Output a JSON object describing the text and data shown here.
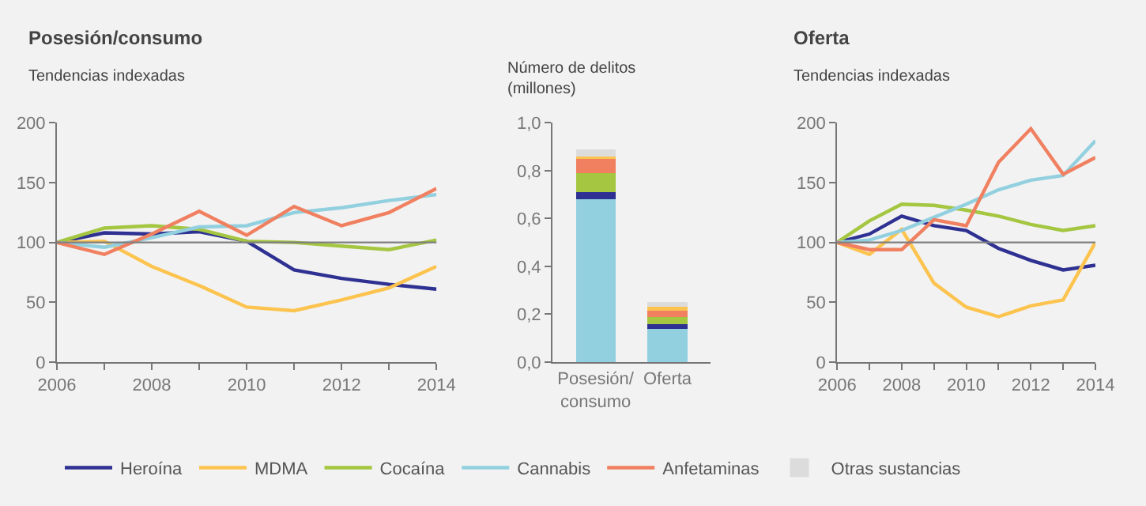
{
  "chart_data": [
    {
      "type": "line",
      "title": "Posesión/consumo",
      "subtitle": "Tendencias indexadas",
      "x": [
        2006,
        2007,
        2008,
        2009,
        2010,
        2011,
        2012,
        2013,
        2014
      ],
      "series": [
        {
          "name": "Heroína",
          "color": "#2e3192",
          "values": [
            100,
            108,
            107,
            109,
            101,
            77,
            70,
            65,
            61
          ]
        },
        {
          "name": "MDMA",
          "color": "#fcc44f",
          "values": [
            100,
            101,
            80,
            64,
            46,
            43,
            52,
            62,
            80
          ]
        },
        {
          "name": "Cocaína",
          "color": "#a4c640",
          "values": [
            100,
            112,
            114,
            111,
            101,
            100,
            97,
            94,
            102
          ]
        },
        {
          "name": "Cannabis",
          "color": "#92d0e0",
          "values": [
            100,
            96,
            104,
            113,
            114,
            125,
            129,
            135,
            140
          ]
        },
        {
          "name": "Anfetaminas",
          "color": "#f08060",
          "values": [
            100,
            90,
            107,
            126,
            106,
            130,
            114,
            125,
            145
          ]
        }
      ],
      "xlim": [
        2006,
        2014
      ],
      "xticks": [
        2006,
        2008,
        2010,
        2012,
        2014
      ],
      "ylim": [
        0,
        200
      ],
      "yticks": [
        0,
        50,
        100,
        150,
        200
      ],
      "ref_lines": [
        {
          "axis": "y",
          "value": 100,
          "color": "#808080"
        }
      ],
      "grid": false,
      "legend": "bottom",
      "marker": "none",
      "line_style": "solid"
    },
    {
      "type": "bar",
      "stacked": true,
      "ylabel": "Número de delitos (millones)",
      "categories": [
        "Posesión/ consumo",
        "Oferta"
      ],
      "series": [
        {
          "name": "Cannabis",
          "color": "#92d0e0",
          "values": [
            0.68,
            0.14
          ]
        },
        {
          "name": "Heroína",
          "color": "#2e3192",
          "values": [
            0.03,
            0.02
          ]
        },
        {
          "name": "Cocaína",
          "color": "#a4c640",
          "values": [
            0.08,
            0.03
          ]
        },
        {
          "name": "Anfetaminas",
          "color": "#f08060",
          "values": [
            0.06,
            0.03
          ]
        },
        {
          "name": "MDMA",
          "color": "#fcc44f",
          "values": [
            0.01,
            0.01
          ]
        },
        {
          "name": "Otras sustancias",
          "color": "#dcdcdc",
          "values": [
            0.03,
            0.02
          ]
        }
      ],
      "ylim": [
        0,
        1
      ],
      "yticks": [
        {
          "value": 0,
          "label": "0,0"
        },
        {
          "value": 0.2,
          "label": "0,2"
        },
        {
          "value": 0.4,
          "label": "0,4"
        },
        {
          "value": 0.6,
          "label": "0,6"
        },
        {
          "value": 0.8,
          "label": "0,8"
        },
        {
          "value": 1,
          "label": "1,0"
        }
      ],
      "grid": false,
      "legend": "bottom"
    },
    {
      "type": "line",
      "title": "Oferta",
      "subtitle": "Tendencias indexadas",
      "x": [
        2006,
        2007,
        2008,
        2009,
        2010,
        2011,
        2012,
        2013,
        2014
      ],
      "series": [
        {
          "name": "Heroína",
          "color": "#2e3192",
          "values": [
            100,
            107,
            122,
            114,
            110,
            95,
            85,
            77,
            81
          ]
        },
        {
          "name": "MDMA",
          "color": "#fcc44f",
          "values": [
            100,
            90,
            111,
            66,
            46,
            38,
            47,
            52,
            100
          ]
        },
        {
          "name": "Cocaína",
          "color": "#a4c640",
          "values": [
            100,
            118,
            132,
            131,
            127,
            122,
            115,
            110,
            114
          ]
        },
        {
          "name": "Cannabis",
          "color": "#92d0e0",
          "values": [
            100,
            102,
            110,
            121,
            132,
            144,
            152,
            156,
            185
          ]
        },
        {
          "name": "Anfetaminas",
          "color": "#f08060",
          "values": [
            100,
            94,
            94,
            119,
            114,
            167,
            195,
            157,
            171
          ]
        }
      ],
      "xlim": [
        2006,
        2014
      ],
      "xticks": [
        2006,
        2008,
        2010,
        2012,
        2014
      ],
      "ylim": [
        0,
        200
      ],
      "yticks": [
        0,
        50,
        100,
        150,
        200
      ],
      "ref_lines": [
        {
          "axis": "y",
          "value": 100,
          "color": "#808080"
        }
      ],
      "grid": false,
      "legend": "bottom",
      "marker": "none",
      "line_style": "solid"
    }
  ]
}
